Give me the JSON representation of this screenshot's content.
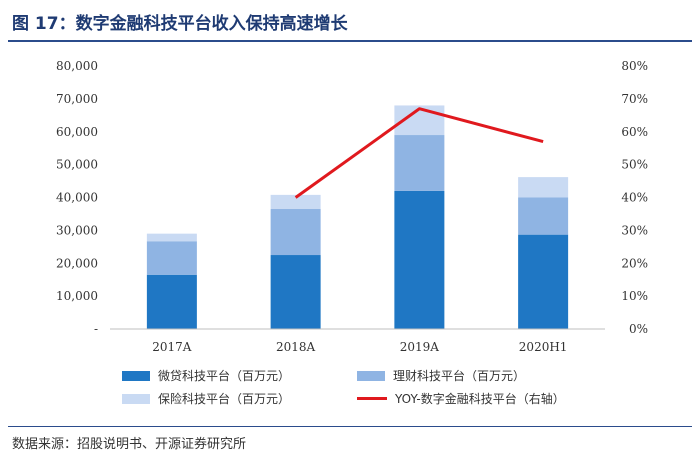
{
  "figure": {
    "title": "图 17：数字金融科技平台收入保持高速增长",
    "source": "数据来源：招股说明书、开源证券研究所"
  },
  "chart_data": {
    "type": "bar",
    "stacked": true,
    "categories": [
      "2017A",
      "2018A",
      "2019A",
      "2020H1"
    ],
    "series": [
      {
        "name": "微贷科技平台（百万元）",
        "values": [
          16500,
          22500,
          42000,
          28700
        ],
        "color": "#1f77c4"
      },
      {
        "name": "理财科技平台（百万元）",
        "values": [
          10200,
          14000,
          17000,
          11300
        ],
        "color": "#8fb4e3"
      },
      {
        "name": "保险科技平台（百万元）",
        "values": [
          2300,
          4300,
          9000,
          6200
        ],
        "color": "#c9daf3"
      }
    ],
    "line_series": {
      "name": "YOY-数字金融科技平台（右轴）",
      "values": [
        null,
        0.4,
        0.67,
        0.57
      ],
      "color": "#e0191e",
      "axis": "right"
    },
    "y_left": {
      "ylim": [
        0,
        80000
      ],
      "ticks": [
        "-",
        "10,000",
        "20,000",
        "30,000",
        "40,000",
        "50,000",
        "60,000",
        "70,000",
        "80,000"
      ]
    },
    "y_right": {
      "ylim": [
        0,
        0.8
      ],
      "ticks": [
        "0%",
        "10%",
        "20%",
        "30%",
        "40%",
        "50%",
        "60%",
        "70%",
        "80%"
      ]
    },
    "legend_position": "bottom"
  }
}
